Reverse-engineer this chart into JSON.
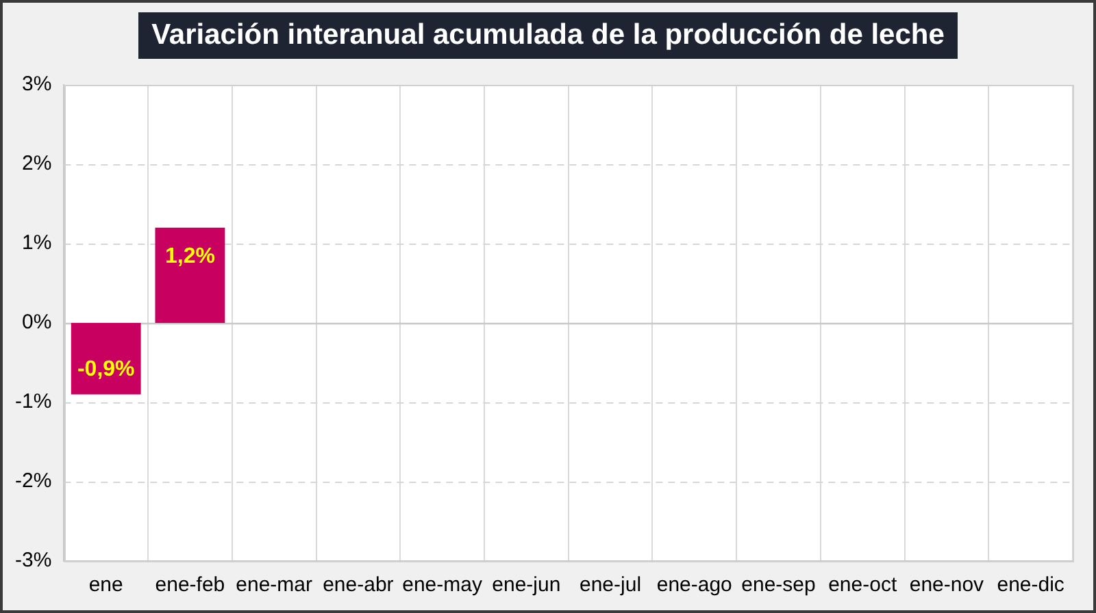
{
  "chart_data": {
    "type": "bar",
    "title": "Variación interanual acumulada de la producción de leche",
    "categories": [
      "ene",
      "ene-feb",
      "ene-mar",
      "ene-abr",
      "ene-may",
      "ene-jun",
      "ene-jul",
      "ene-ago",
      "ene-sep",
      "ene-oct",
      "ene-nov",
      "ene-dic"
    ],
    "values": [
      -0.9,
      1.2,
      null,
      null,
      null,
      null,
      null,
      null,
      null,
      null,
      null,
      null
    ],
    "value_labels": [
      "-0,9%",
      "1,2%",
      null,
      null,
      null,
      null,
      null,
      null,
      null,
      null,
      null,
      null
    ],
    "color": "#c8005f",
    "ylim": [
      -3,
      3
    ],
    "yticks": [
      {
        "value": -3,
        "label": "-3%"
      },
      {
        "value": -2,
        "label": "-2%"
      },
      {
        "value": -1,
        "label": "-1%"
      },
      {
        "value": 0,
        "label": "0%"
      },
      {
        "value": 1,
        "label": "1%"
      },
      {
        "value": 2,
        "label": "2%"
      },
      {
        "value": 3,
        "label": "3%"
      }
    ],
    "grid": true
  }
}
